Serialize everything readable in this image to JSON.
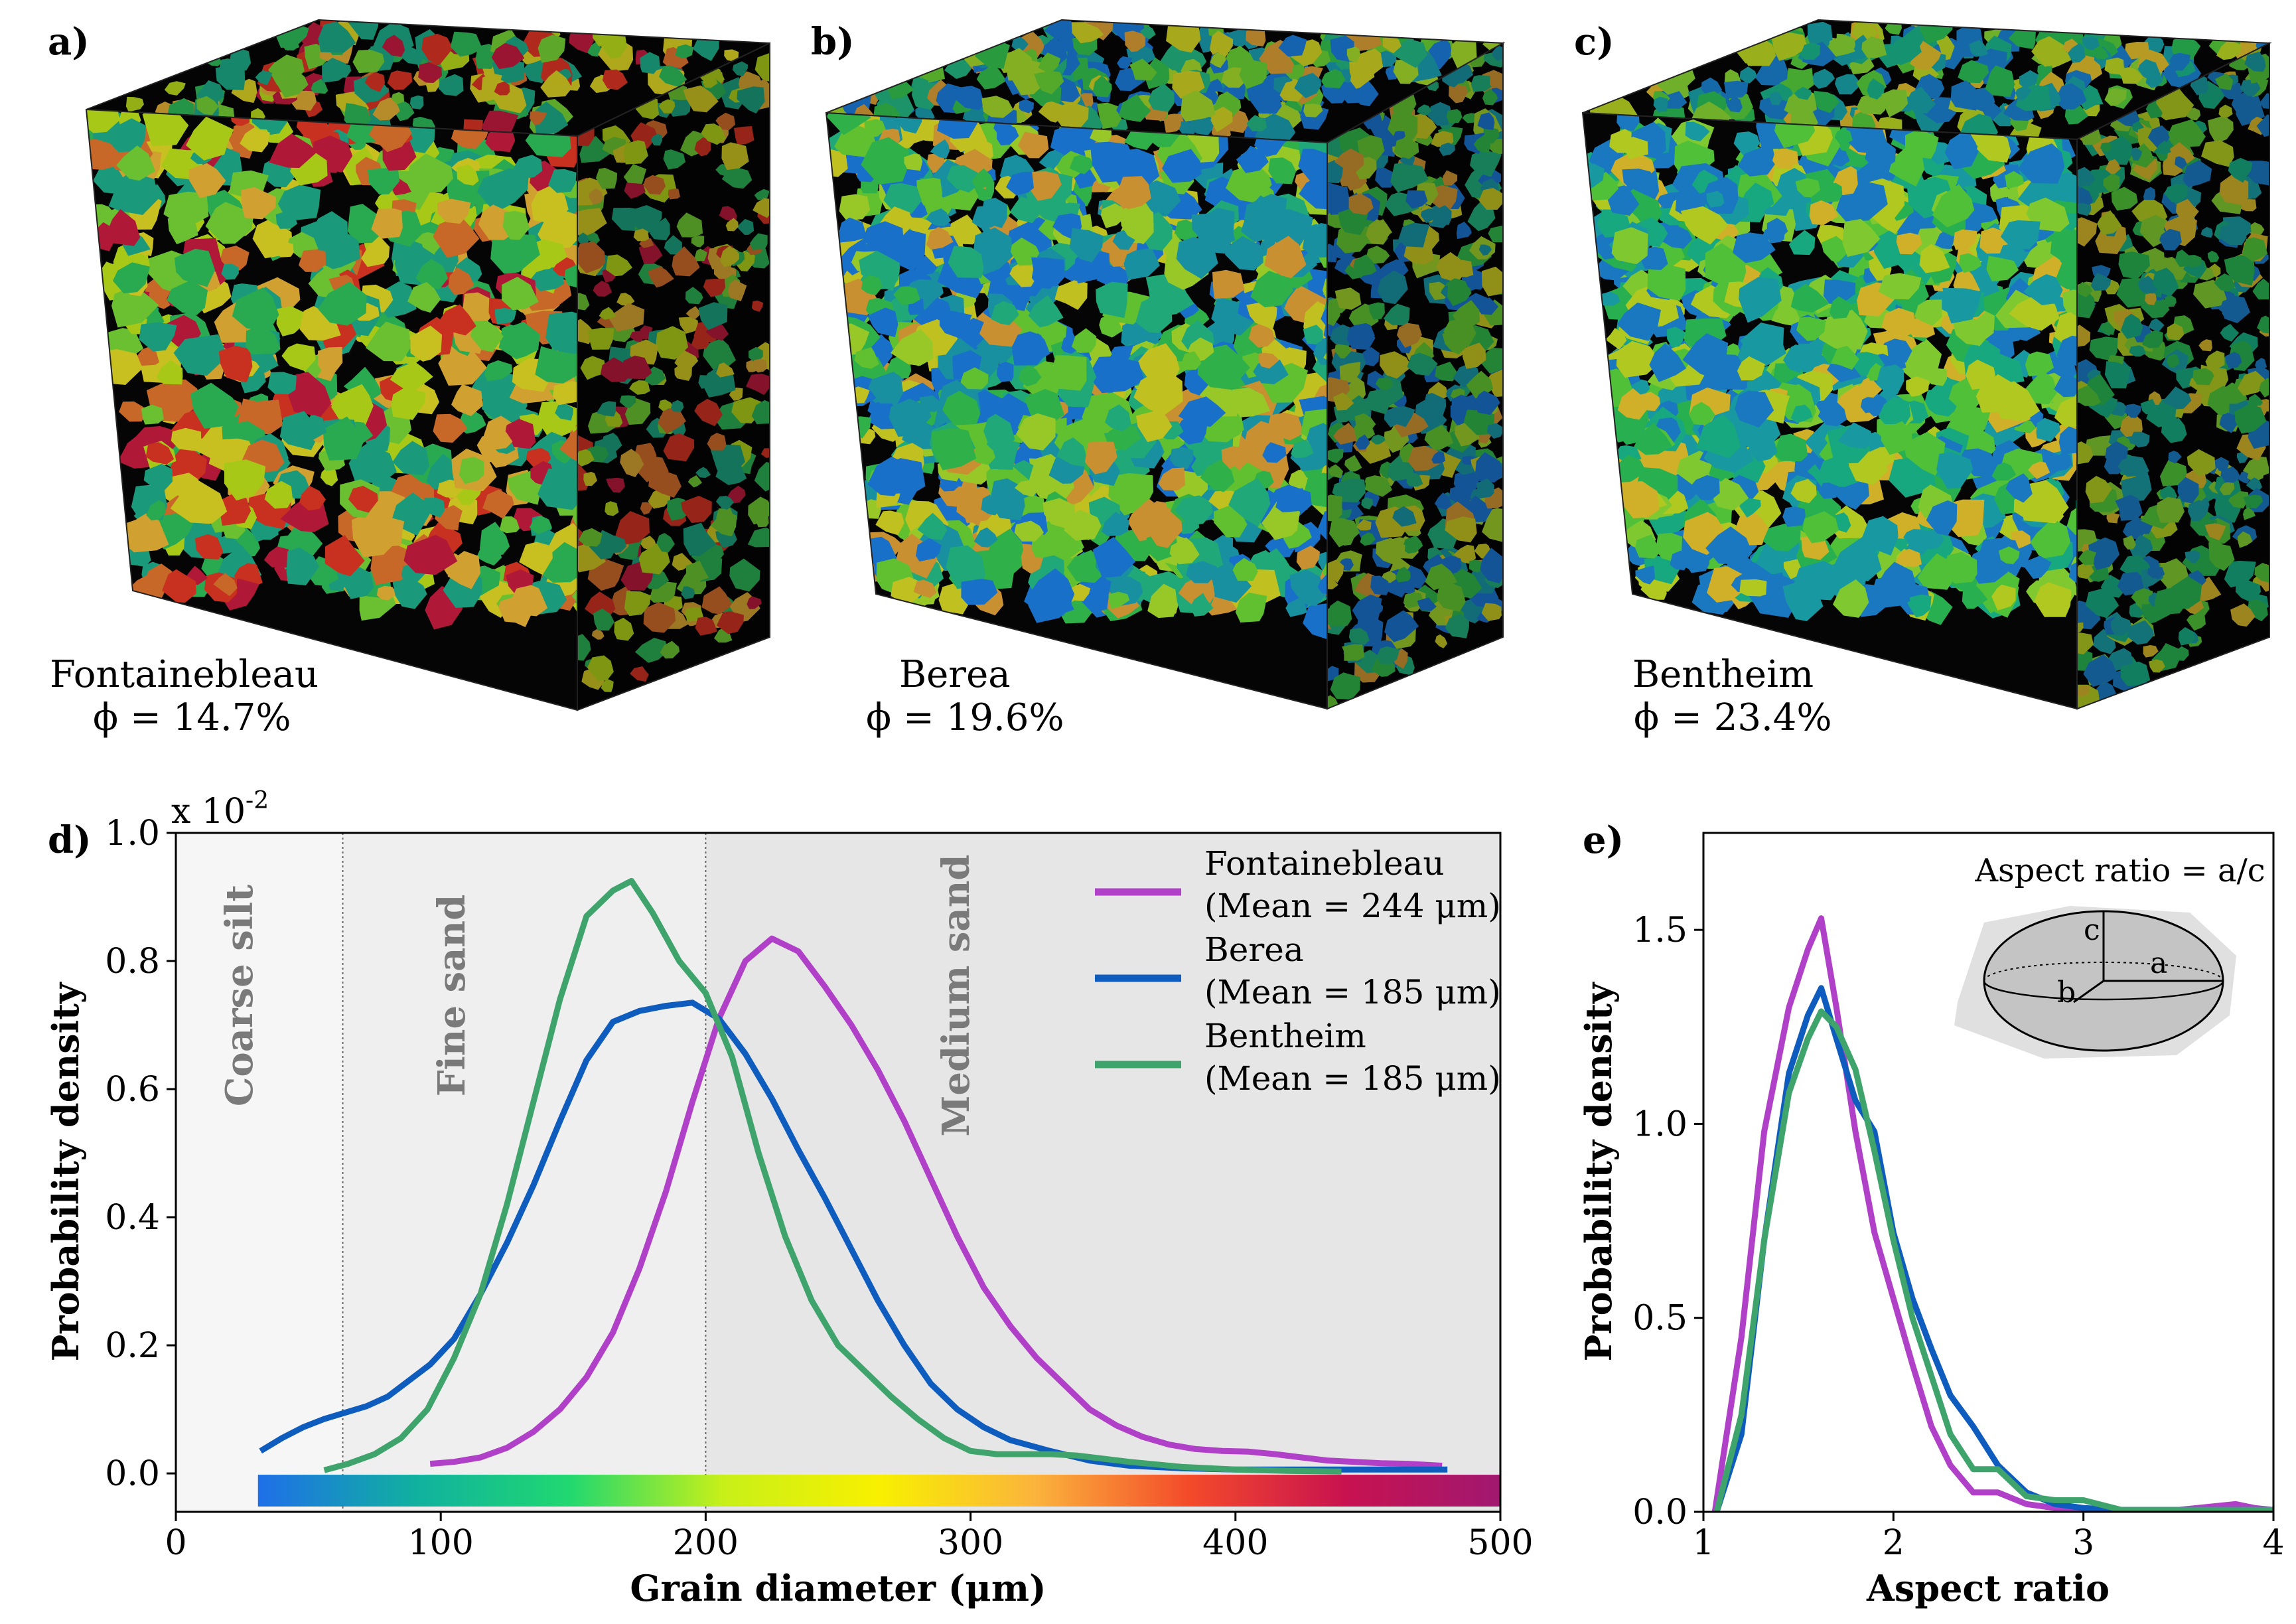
{
  "colors": {
    "fontainebleau": "#b040c8",
    "berea": "#0f5cbf",
    "bentheim": "#3fa36c",
    "band_coarse_silt": "#f6f6f6",
    "band_fine_sand": "#efefef",
    "band_medium_sand": "#e6e6e6",
    "grain_colormap": [
      "#1f6fe8",
      "#10b0a0",
      "#20d870",
      "#c8f018",
      "#f8f000",
      "#fbb43c",
      "#f34a2a",
      "#c81250",
      "#a01870"
    ]
  },
  "panels": {
    "a": {
      "label": "a)",
      "sample": "Fontainebleau",
      "porosity": "ϕ = 14.7%",
      "palette": [
        "#1a9a7a",
        "#2aaa50",
        "#6ac030",
        "#a8c818",
        "#c8c020",
        "#d0a030",
        "#c86828",
        "#c83020",
        "#b01838"
      ]
    },
    "b": {
      "label": "b)",
      "sample": "Berea",
      "porosity": "ϕ = 19.6%",
      "palette": [
        "#1870c8",
        "#1890a0",
        "#20a878",
        "#30b048",
        "#60c030",
        "#98c828",
        "#c0c020",
        "#c89030"
      ]
    },
    "c": {
      "label": "c)",
      "sample": "Bentheim",
      "porosity": "ϕ = 23.4%",
      "palette": [
        "#1a78c0",
        "#1898a0",
        "#18a880",
        "#28b050",
        "#50c038",
        "#80c830",
        "#b0c820",
        "#d0b028"
      ]
    }
  },
  "chart_data": [
    {
      "panel": "d",
      "label": "d)",
      "type": "line",
      "xlabel": "Grain diameter (μm)",
      "ylabel": "Probability density",
      "scale_note": "x 10",
      "scale_exponent": "-2",
      "xlim": [
        0,
        500
      ],
      "ylim": [
        -0.06,
        1.0
      ],
      "xticks": [
        0,
        100,
        200,
        300,
        400,
        500
      ],
      "yticks": [
        0.0,
        0.2,
        0.4,
        0.6,
        0.8,
        1.0
      ],
      "xtick_labels": [
        "0",
        "100",
        "200",
        "300",
        "400",
        "500"
      ],
      "ytick_labels": [
        "0.0",
        "0.2",
        "0.4",
        "0.6",
        "0.8",
        "1.0"
      ],
      "bands": [
        {
          "label": "Coarse silt",
          "x0": 0,
          "x1": 63
        },
        {
          "label": "Fine sand",
          "x0": 63,
          "x1": 200
        },
        {
          "label": "Medium sand",
          "x0": 200,
          "x1": 500
        }
      ],
      "colorbar": {
        "x0": 31,
        "x1": 500
      },
      "legend_position": "top-right",
      "series": [
        {
          "name": "Fontainebleau",
          "mean_label": "(Mean = 244 μm)",
          "x": [
            96,
            105,
            115,
            125,
            135,
            145,
            155,
            165,
            175,
            185,
            195,
            205,
            215,
            225,
            235,
            245,
            255,
            265,
            275,
            285,
            295,
            305,
            315,
            325,
            335,
            345,
            355,
            365,
            375,
            385,
            395,
            405,
            415,
            425,
            435,
            445,
            455,
            465,
            478
          ],
          "y": [
            0.015,
            0.018,
            0.025,
            0.04,
            0.065,
            0.1,
            0.15,
            0.22,
            0.32,
            0.44,
            0.58,
            0.71,
            0.8,
            0.835,
            0.815,
            0.76,
            0.7,
            0.63,
            0.55,
            0.46,
            0.37,
            0.29,
            0.23,
            0.18,
            0.14,
            0.1,
            0.075,
            0.057,
            0.045,
            0.038,
            0.035,
            0.034,
            0.03,
            0.025,
            0.02,
            0.018,
            0.016,
            0.015,
            0.012
          ]
        },
        {
          "name": "Berea",
          "mean_label": "(Mean = 185 μm)",
          "x": [
            32,
            40,
            48,
            56,
            64,
            72,
            80,
            88,
            96,
            105,
            115,
            125,
            135,
            145,
            155,
            165,
            175,
            185,
            195,
            205,
            215,
            225,
            235,
            245,
            255,
            265,
            275,
            285,
            295,
            305,
            315,
            330,
            345,
            360,
            380,
            400,
            420,
            440,
            460,
            480
          ],
          "y": [
            0.035,
            0.055,
            0.072,
            0.085,
            0.095,
            0.105,
            0.12,
            0.145,
            0.17,
            0.21,
            0.28,
            0.36,
            0.45,
            0.55,
            0.645,
            0.705,
            0.722,
            0.73,
            0.735,
            0.71,
            0.655,
            0.585,
            0.505,
            0.43,
            0.35,
            0.27,
            0.2,
            0.14,
            0.1,
            0.072,
            0.052,
            0.035,
            0.02,
            0.012,
            0.008,
            0.006,
            0.006,
            0.006,
            0.006,
            0.006
          ]
        },
        {
          "name": "Bentheim",
          "mean_label": "(Mean = 185 μm)",
          "x": [
            56,
            65,
            75,
            85,
            95,
            105,
            115,
            125,
            135,
            145,
            155,
            165,
            172,
            180,
            190,
            200,
            210,
            220,
            230,
            240,
            250,
            260,
            270,
            280,
            290,
            300,
            310,
            320,
            330,
            340,
            360,
            380,
            400,
            420,
            440
          ],
          "y": [
            0.005,
            0.015,
            0.03,
            0.055,
            0.1,
            0.18,
            0.28,
            0.42,
            0.58,
            0.74,
            0.87,
            0.91,
            0.925,
            0.875,
            0.8,
            0.75,
            0.65,
            0.5,
            0.37,
            0.27,
            0.2,
            0.16,
            0.12,
            0.085,
            0.055,
            0.035,
            0.03,
            0.03,
            0.03,
            0.028,
            0.018,
            0.01,
            0.006,
            0.004,
            0.003
          ]
        }
      ]
    },
    {
      "panel": "e",
      "label": "e)",
      "type": "line",
      "xlabel": "Aspect ratio",
      "ylabel": "Probability density",
      "xlim": [
        1,
        4
      ],
      "ylim": [
        0,
        1.75
      ],
      "xticks": [
        1,
        2,
        3,
        4
      ],
      "yticks": [
        0.0,
        0.5,
        1.0,
        1.5
      ],
      "xtick_labels": [
        "1",
        "2",
        "3",
        "4"
      ],
      "ytick_labels": [
        "0.0",
        "0.5",
        "1.0",
        "1.5"
      ],
      "inset": {
        "title": "Aspect ratio = a/c",
        "axis_labels": [
          "c",
          "a",
          "b"
        ]
      },
      "series": [
        {
          "name": "Fontainebleau",
          "x": [
            1.06,
            1.2,
            1.32,
            1.45,
            1.55,
            1.62,
            1.7,
            1.8,
            1.9,
            2.0,
            2.1,
            2.2,
            2.3,
            2.42,
            2.55,
            2.7,
            2.85,
            3.0,
            3.2,
            3.5,
            3.8,
            3.9,
            4.0
          ],
          "y": [
            0.0,
            0.45,
            0.98,
            1.3,
            1.45,
            1.53,
            1.3,
            0.98,
            0.72,
            0.55,
            0.38,
            0.22,
            0.12,
            0.05,
            0.05,
            0.02,
            0.01,
            0.005,
            0.005,
            0.005,
            0.02,
            0.01,
            0.005
          ]
        },
        {
          "name": "Berea",
          "x": [
            1.07,
            1.2,
            1.32,
            1.45,
            1.55,
            1.62,
            1.7,
            1.8,
            1.9,
            2.0,
            2.1,
            2.2,
            2.3,
            2.42,
            2.55,
            2.7,
            2.85,
            3.0,
            3.2,
            3.5,
            3.8,
            4.0
          ],
          "y": [
            0.0,
            0.2,
            0.7,
            1.13,
            1.28,
            1.35,
            1.22,
            1.06,
            0.98,
            0.72,
            0.55,
            0.42,
            0.3,
            0.22,
            0.12,
            0.05,
            0.02,
            0.01,
            0.005,
            0.005,
            0.005,
            0.005
          ]
        },
        {
          "name": "Bentheim",
          "x": [
            1.07,
            1.2,
            1.32,
            1.45,
            1.55,
            1.62,
            1.7,
            1.8,
            1.9,
            2.0,
            2.1,
            2.2,
            2.3,
            2.42,
            2.55,
            2.7,
            2.85,
            3.0,
            3.2,
            3.5,
            3.8,
            4.0
          ],
          "y": [
            0.0,
            0.25,
            0.7,
            1.08,
            1.22,
            1.29,
            1.25,
            1.14,
            0.93,
            0.7,
            0.5,
            0.35,
            0.2,
            0.11,
            0.11,
            0.04,
            0.03,
            0.03,
            0.005,
            0.005,
            0.005,
            0.005
          ]
        }
      ]
    }
  ]
}
